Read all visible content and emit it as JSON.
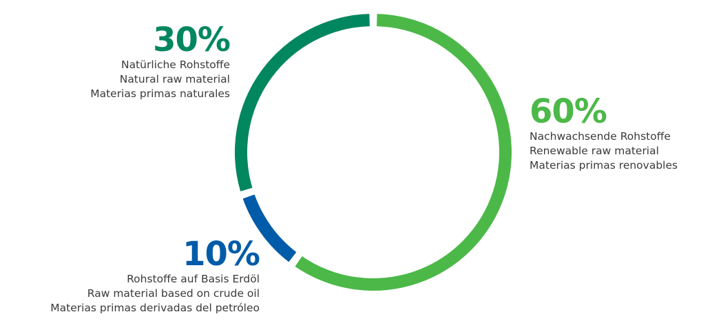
{
  "chart_data": {
    "type": "pie",
    "style": "donut",
    "slices": [
      {
        "value": 60,
        "label": "60%",
        "lines": [
          "Nachwachsende Rohstoffe",
          "Renewable raw material",
          "Materias primas renovables"
        ],
        "color": "#4cb848"
      },
      {
        "value": 10,
        "label": "10%",
        "lines": [
          "Rohstoffe auf Basis Erdöl",
          "Raw material based on crude oil",
          "Materias primas derivadas del petróleo"
        ],
        "color": "#005ba8"
      },
      {
        "value": 30,
        "label": "30%",
        "lines": [
          "Natürliche Rohstoffe",
          "Natural raw material",
          "Materias primas naturales"
        ],
        "color": "#00875f"
      }
    ]
  }
}
